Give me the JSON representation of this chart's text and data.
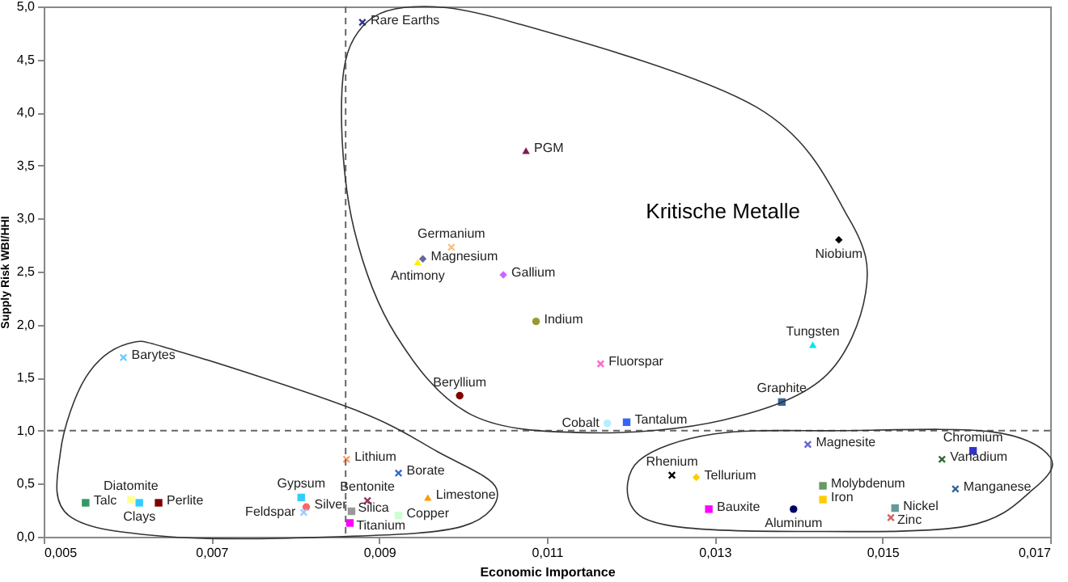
{
  "chart_data": {
    "type": "scatter",
    "xlabel": "Economic Importance",
    "ylabel": "Supply Risk WBI/HHI",
    "annotations": [
      "Kritische Metalle"
    ],
    "xlim": [
      0.005,
      0.017
    ],
    "ylim": [
      0,
      5
    ],
    "xticks": [
      {
        "value": 0.005,
        "label": "0,005"
      },
      {
        "value": 0.007,
        "label": "0,007"
      },
      {
        "value": 0.009,
        "label": "0,009"
      },
      {
        "value": 0.011,
        "label": "0,011"
      },
      {
        "value": 0.013,
        "label": "0,013"
      },
      {
        "value": 0.015,
        "label": "0,015"
      },
      {
        "value": 0.017,
        "label": "0,017"
      }
    ],
    "yticks": [
      {
        "value": 0,
        "label": "0,0"
      },
      {
        "value": 0.5,
        "label": "0,5"
      },
      {
        "value": 1,
        "label": "1,0"
      },
      {
        "value": 1.5,
        "label": "1,5"
      },
      {
        "value": 2,
        "label": "2,0"
      },
      {
        "value": 2.5,
        "label": "2,5"
      },
      {
        "value": 3,
        "label": "3,0"
      },
      {
        "value": 3.5,
        "label": "3,5"
      },
      {
        "value": 4,
        "label": "4,0"
      },
      {
        "value": 4.5,
        "label": "4,5"
      },
      {
        "value": 5,
        "label": "5,0"
      }
    ],
    "grid": false,
    "legend": false,
    "ref_lines": [
      {
        "axis": "x",
        "value": 0.0086,
        "line_style": "dashed",
        "color": "#666666"
      },
      {
        "axis": "y",
        "value": 1,
        "line_style": "dashed",
        "color": "#666666"
      }
    ],
    "series": [
      {
        "name": "Rare Earths",
        "color": "#333399",
        "marker": "cross",
        "x": [
          0.0088
        ],
        "values": [
          4.85
        ]
      },
      {
        "name": "PGM",
        "color": "#7f1f4f",
        "marker": "triangle",
        "x": [
          0.01075
        ],
        "values": [
          3.64
        ]
      },
      {
        "name": "Germanium",
        "color": "#ffbf80",
        "marker": "cross",
        "x": [
          0.00986
        ],
        "values": [
          2.73
        ]
      },
      {
        "name": "Magnesium",
        "color": "#666699",
        "marker": "diamond",
        "x": [
          0.00952
        ],
        "values": [
          2.62
        ]
      },
      {
        "name": "Antimony",
        "color": "#ffee00",
        "marker": "triangle",
        "x": [
          0.00946
        ],
        "values": [
          2.59
        ]
      },
      {
        "name": "Gallium",
        "color": "#cc66ff",
        "marker": "diamond",
        "x": [
          0.01048
        ],
        "values": [
          2.47
        ]
      },
      {
        "name": "Indium",
        "color": "#999933",
        "marker": "circle",
        "x": [
          0.01087
        ],
        "values": [
          2.03
        ]
      },
      {
        "name": "Fluorspar",
        "color": "#ff66cc",
        "marker": "cross",
        "x": [
          0.01164
        ],
        "values": [
          1.63
        ]
      },
      {
        "name": "Beryllium",
        "color": "#800000",
        "marker": "circle",
        "x": [
          0.00996
        ],
        "values": [
          1.33
        ]
      },
      {
        "name": "Niobium",
        "color": "#000000",
        "marker": "diamond",
        "x": [
          0.01448
        ],
        "values": [
          2.8
        ]
      },
      {
        "name": "Tungsten",
        "color": "#00e5ee",
        "marker": "triangle",
        "x": [
          0.01417
        ],
        "values": [
          1.81
        ]
      },
      {
        "name": "Graphite",
        "color": "#336699",
        "marker": "square",
        "x": [
          0.0138
        ],
        "values": [
          1.27
        ]
      },
      {
        "name": "Cobalt",
        "color": "#b0f0ff",
        "marker": "circle",
        "x": [
          0.01172
        ],
        "values": [
          1.07
        ]
      },
      {
        "name": "Tantalum",
        "color": "#3366ff",
        "marker": "square",
        "x": [
          0.01195
        ],
        "values": [
          1.08
        ]
      },
      {
        "name": "Magnesite",
        "color": "#6666cc",
        "marker": "cross",
        "x": [
          0.01411
        ],
        "values": [
          0.87
        ]
      },
      {
        "name": "Chromium",
        "color": "#3333cc",
        "marker": "square",
        "x": [
          0.01608
        ],
        "values": [
          0.81
        ]
      },
      {
        "name": "Vanadium",
        "color": "#336633",
        "marker": "cross",
        "x": [
          0.01571
        ],
        "values": [
          0.73
        ]
      },
      {
        "name": "Manganese",
        "color": "#336699",
        "marker": "cross",
        "x": [
          0.01587
        ],
        "values": [
          0.45
        ]
      },
      {
        "name": "Rhenium",
        "color": "#000000",
        "marker": "cross",
        "x": [
          0.01249
        ],
        "values": [
          0.58
        ]
      },
      {
        "name": "Tellurium",
        "color": "#ffcc00",
        "marker": "diamond",
        "x": [
          0.01278
        ],
        "values": [
          0.56
        ]
      },
      {
        "name": "Bauxite",
        "color": "#ff00ff",
        "marker": "square",
        "x": [
          0.01293
        ],
        "values": [
          0.26
        ]
      },
      {
        "name": "Aluminum",
        "color": "#000066",
        "marker": "circle",
        "x": [
          0.01394
        ],
        "values": [
          0.26
        ]
      },
      {
        "name": "Molybdenum",
        "color": "#669966",
        "marker": "square",
        "x": [
          0.01429
        ],
        "values": [
          0.48
        ]
      },
      {
        "name": "Iron",
        "color": "#ffcc00",
        "marker": "square",
        "x": [
          0.01429
        ],
        "values": [
          0.35
        ]
      },
      {
        "name": "Nickel",
        "color": "#669999",
        "marker": "square",
        "x": [
          0.01515
        ],
        "values": [
          0.27
        ]
      },
      {
        "name": "Zinc",
        "color": "#cc6666",
        "marker": "cross",
        "x": [
          0.0151
        ],
        "values": [
          0.18
        ]
      },
      {
        "name": "Barytes",
        "color": "#66ccff",
        "marker": "cross",
        "x": [
          0.00595
        ],
        "values": [
          1.69
        ]
      },
      {
        "name": "Lithium",
        "color": "#ff9966",
        "marker": "cross",
        "x": [
          0.00861
        ],
        "values": [
          0.73
        ]
      },
      {
        "name": "Borate",
        "color": "#3366cc",
        "marker": "cross",
        "x": [
          0.00923
        ],
        "values": [
          0.6
        ]
      },
      {
        "name": "Bentonite",
        "color": "#993366",
        "marker": "cross",
        "x": [
          0.00886
        ],
        "values": [
          0.34
        ]
      },
      {
        "name": "Limestone",
        "color": "#ff9900",
        "marker": "triangle",
        "x": [
          0.00958
        ],
        "values": [
          0.37
        ]
      },
      {
        "name": "Copper",
        "color": "#ccffcc",
        "marker": "square",
        "x": [
          0.00923
        ],
        "values": [
          0.2
        ]
      },
      {
        "name": "Silica",
        "color": "#999999",
        "marker": "square",
        "x": [
          0.00867
        ],
        "values": [
          0.24
        ]
      },
      {
        "name": "Titanium",
        "color": "#ff00ff",
        "marker": "square",
        "x": [
          0.00865
        ],
        "values": [
          0.13
        ]
      },
      {
        "name": "Gypsum",
        "color": "#33ccff",
        "marker": "square",
        "x": [
          0.00807
        ],
        "values": [
          0.37
        ]
      },
      {
        "name": "Silver",
        "color": "#ff6666",
        "marker": "circle",
        "x": [
          0.00813
        ],
        "values": [
          0.28
        ]
      },
      {
        "name": "Feldspar",
        "color": "#99ccff",
        "marker": "cross",
        "x": [
          0.0081
        ],
        "values": [
          0.23
        ]
      },
      {
        "name": "Talc",
        "color": "#339966",
        "marker": "square",
        "x": [
          0.0055
        ],
        "values": [
          0.32
        ]
      },
      {
        "name": "Diatomite",
        "color": "#ffff99",
        "marker": "square",
        "x": [
          0.00604
        ],
        "values": [
          0.35
        ]
      },
      {
        "name": "Clays",
        "color": "#33ccff",
        "marker": "square",
        "x": [
          0.00614
        ],
        "values": [
          0.32
        ]
      },
      {
        "name": "Perlite",
        "color": "#800000",
        "marker": "square",
        "x": [
          0.00637
        ],
        "values": [
          0.32
        ]
      }
    ]
  }
}
